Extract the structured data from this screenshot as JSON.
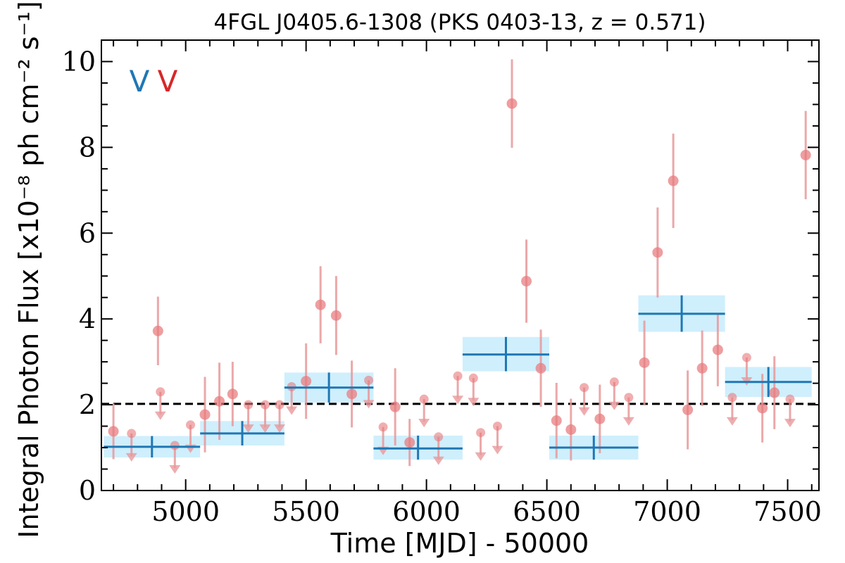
{
  "chart_data": {
    "type": "scatter",
    "title": "4FGL J0405.6-1308 (PKS 0403-13, z = 0.571)",
    "xlabel": "Time [MJD] - 50000",
    "ylabel": "Integral Photon Flux [x10⁻⁸ ph cm⁻² s⁻¹]",
    "xlim": [
      4650,
      7630
    ],
    "ylim": [
      0,
      10.5
    ],
    "xticks": [
      5000,
      5500,
      6000,
      6500,
      7000,
      7500
    ],
    "yticks": [
      0,
      2,
      4,
      6,
      8,
      10
    ],
    "grid": false,
    "reference_level": 2.02,
    "legend": {
      "placement": "top-left",
      "entries": [
        {
          "glyph": "V",
          "color": "#1f77b4"
        },
        {
          "glyph": "V",
          "color": "#d62728"
        }
      ]
    },
    "colors": {
      "detection": "#e8787c",
      "errorbar": "#e8999b",
      "block": "#1f77b4",
      "block_fill": "#cfeffd",
      "reference": "#000000"
    },
    "series": [
      {
        "kind": "points",
        "x": [
          4700,
          4885,
          5080,
          5140,
          5195,
          5500,
          5560,
          5625,
          5690,
          5870,
          5930,
          6355,
          6415,
          6475,
          6540,
          6600,
          6720,
          6905,
          6960,
          7025,
          7085,
          7145,
          7210,
          7395,
          7445,
          7575
        ],
        "y": [
          1.38,
          3.72,
          1.77,
          2.08,
          2.25,
          2.55,
          4.33,
          4.08,
          2.25,
          1.95,
          1.12,
          9.02,
          4.88,
          2.85,
          1.63,
          1.42,
          1.67,
          2.98,
          5.55,
          7.22,
          1.88,
          2.85,
          3.28,
          1.92,
          2.28,
          7.82
        ],
        "err": [
          0.65,
          0.8,
          0.88,
          0.9,
          0.75,
          0.88,
          0.9,
          0.92,
          0.78,
          0.9,
          0.55,
          1.03,
          0.97,
          0.9,
          0.88,
          0.72,
          0.8,
          0.98,
          1.05,
          1.1,
          0.92,
          0.88,
          0.85,
          0.8,
          0.85,
          1.03
        ]
      },
      {
        "kind": "upper_limits",
        "x": [
          4775,
          4895,
          4955,
          5020,
          5440,
          5260,
          5330,
          5390,
          5760,
          5820,
          5990,
          6050,
          6130,
          6195,
          6225,
          6295,
          6655,
          6780,
          6840,
          7270,
          7330,
          7510
        ],
        "y": [
          1.33,
          2.3,
          1.05,
          1.53,
          2.42,
          2.0,
          2.0,
          2.0,
          2.57,
          1.48,
          2.13,
          1.25,
          2.67,
          2.62,
          1.35,
          1.5,
          2.4,
          2.53,
          2.17,
          2.17,
          3.1,
          2.13
        ]
      },
      {
        "kind": "bayesian_blocks",
        "x_start": [
          4660,
          5060,
          5410,
          5780,
          6150,
          6510,
          6880,
          7240
        ],
        "x_end": [
          5060,
          5410,
          5780,
          6150,
          6510,
          6880,
          7240,
          7600
        ],
        "y": [
          1.02,
          1.33,
          2.4,
          0.98,
          3.17,
          1.0,
          4.12,
          2.53
        ],
        "y_low": [
          0.77,
          1.05,
          2.05,
          0.72,
          2.78,
          0.72,
          3.7,
          2.18
        ],
        "y_high": [
          1.27,
          1.62,
          2.75,
          1.28,
          3.58,
          1.28,
          4.55,
          2.88
        ],
        "x_center": [
          4860,
          5235,
          5595,
          5965,
          6330,
          6695,
          7060,
          7420
        ]
      }
    ]
  }
}
